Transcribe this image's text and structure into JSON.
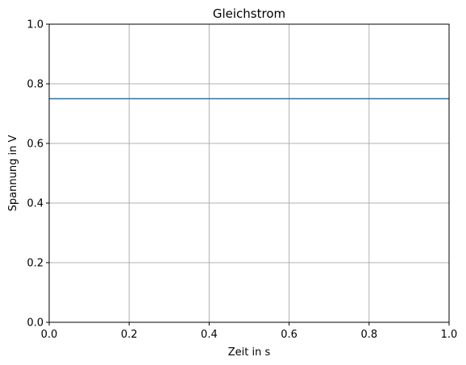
{
  "chart_data": {
    "type": "line",
    "title": "Gleichstrom",
    "xlabel": "Zeit in s",
    "ylabel": "Spannung in V",
    "xlim": [
      0,
      1
    ],
    "ylim": [
      0,
      1
    ],
    "xticks": [
      0.0,
      0.2,
      0.4,
      0.6,
      0.8,
      1.0
    ],
    "yticks": [
      0.0,
      0.2,
      0.4,
      0.6,
      0.8,
      1.0
    ],
    "xtick_labels": [
      "0.0",
      "0.2",
      "0.4",
      "0.6",
      "0.8",
      "1.0"
    ],
    "ytick_labels": [
      "0.0",
      "0.2",
      "0.4",
      "0.6",
      "0.8",
      "1.0"
    ],
    "grid": true,
    "colors": {
      "line": "#1f77b4",
      "grid": "#b0b0b0",
      "axis": "#000000"
    },
    "series": [
      {
        "x": [
          0,
          1
        ],
        "y": [
          0.75,
          0.75
        ]
      }
    ]
  }
}
